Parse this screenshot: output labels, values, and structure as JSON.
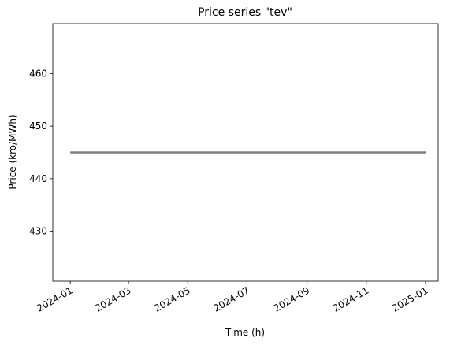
{
  "chart_data": {
    "type": "line",
    "title": "Price series \"tev\"",
    "x_label": "Time (h)",
    "y_label": "Price (kro/MWh)",
    "x": [
      "2024-01",
      "2025-01"
    ],
    "series": [
      {
        "name": "tev",
        "color": "#857b82",
        "values": [
          445,
          445
        ]
      }
    ],
    "xlim": [
      "2023-12-14",
      "2025-01-14"
    ],
    "xticks": [
      "2024-01",
      "2024-03",
      "2024-05",
      "2024-07",
      "2024-09",
      "2024-11",
      "2025-01"
    ],
    "ylim": [
      420.5,
      469.5
    ],
    "yticks": [
      430,
      440,
      450,
      460
    ],
    "grid": false,
    "legend": false
  }
}
